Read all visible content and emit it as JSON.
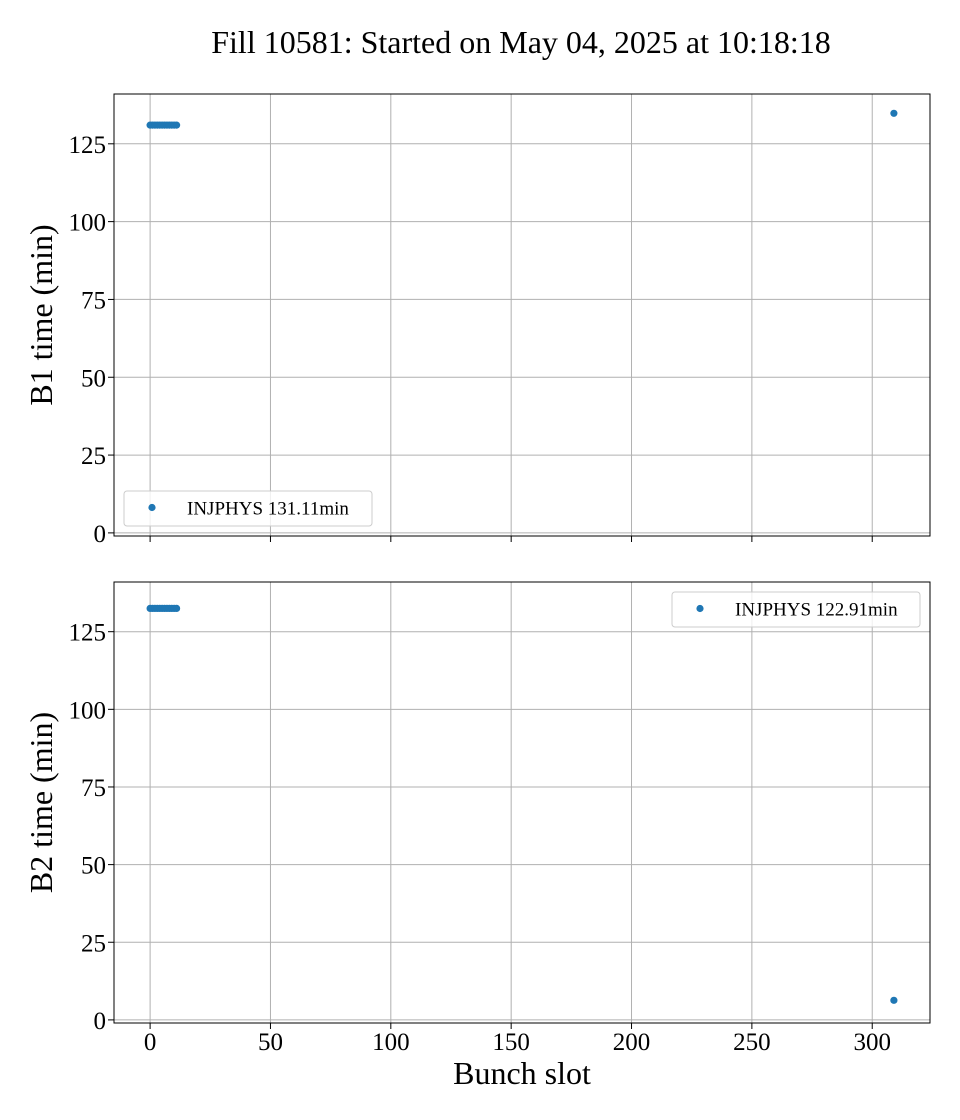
{
  "figure": {
    "title": "Fill 10581: Started on May 04, 2025 at 10:18:18"
  },
  "chart_data": [
    {
      "type": "scatter",
      "panel": "top",
      "title": "",
      "xlabel": "",
      "ylabel": "B1 time (min)",
      "xlim": [
        -15,
        324
      ],
      "ylim": [
        -1,
        141
      ],
      "xticks": [
        0,
        50,
        100,
        150,
        200,
        250,
        300
      ],
      "xtick_labels_visible": false,
      "yticks": [
        0,
        25,
        50,
        75,
        100,
        125
      ],
      "grid": true,
      "legend_position": "lower-left",
      "color": "#1f77b4",
      "series": [
        {
          "name": "INJPHYS 131.11min",
          "x": [
            0,
            1,
            2,
            3,
            4,
            5,
            6,
            7,
            8,
            9,
            10,
            11,
            309
          ],
          "y": [
            131,
            131,
            131,
            131,
            131,
            131,
            131,
            131,
            131,
            131,
            131,
            131,
            134.8
          ]
        }
      ]
    },
    {
      "type": "scatter",
      "panel": "bottom",
      "title": "",
      "xlabel": "Bunch slot",
      "ylabel": "B2 time (min)",
      "xlim": [
        -15,
        324
      ],
      "ylim": [
        -1,
        141
      ],
      "xticks": [
        0,
        50,
        100,
        150,
        200,
        250,
        300
      ],
      "xtick_labels_visible": true,
      "yticks": [
        0,
        25,
        50,
        75,
        100,
        125
      ],
      "grid": true,
      "legend_position": "upper-right",
      "color": "#1f77b4",
      "series": [
        {
          "name": "INJPHYS 122.91min",
          "x": [
            0,
            1,
            2,
            3,
            4,
            5,
            6,
            7,
            8,
            9,
            10,
            11,
            309
          ],
          "y": [
            132.5,
            132.5,
            132.5,
            132.5,
            132.5,
            132.5,
            132.5,
            132.5,
            132.5,
            132.5,
            132.5,
            132.5,
            6.3
          ]
        }
      ]
    }
  ]
}
